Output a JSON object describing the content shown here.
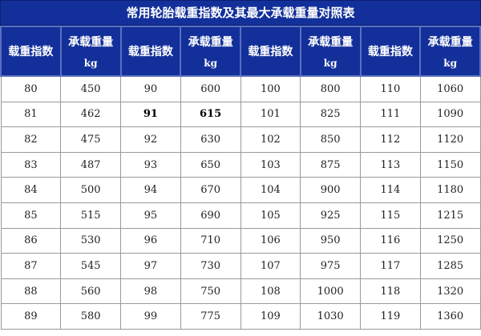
{
  "title": "常用轮胎载重指数及其最大承载重量对照表",
  "headers": [
    {
      "label": "载重指数",
      "unit": ""
    },
    {
      "label": "承载重量",
      "unit": "kg"
    },
    {
      "label": "载重指数",
      "unit": ""
    },
    {
      "label": "承载重量",
      "unit": "kg"
    },
    {
      "label": "载重指数",
      "unit": ""
    },
    {
      "label": "承载重量",
      "unit": "kg"
    },
    {
      "label": "载重指数",
      "unit": ""
    },
    {
      "label": "承载重量",
      "unit": "kg"
    }
  ],
  "rows": [
    [
      "80",
      "450",
      "90",
      "600",
      "100",
      "800",
      "110",
      "1060"
    ],
    [
      "81",
      "462",
      "91",
      "615",
      "101",
      "825",
      "111",
      "1090"
    ],
    [
      "82",
      "475",
      "92",
      "630",
      "102",
      "850",
      "112",
      "1120"
    ],
    [
      "83",
      "487",
      "93",
      "650",
      "103",
      "875",
      "113",
      "1150"
    ],
    [
      "84",
      "500",
      "94",
      "670",
      "104",
      "900",
      "114",
      "1180"
    ],
    [
      "85",
      "515",
      "95",
      "690",
      "105",
      "925",
      "115",
      "1215"
    ],
    [
      "86",
      "530",
      "96",
      "710",
      "106",
      "950",
      "116",
      "1250"
    ],
    [
      "87",
      "545",
      "97",
      "730",
      "107",
      "975",
      "117",
      "1285"
    ],
    [
      "88",
      "560",
      "98",
      "750",
      "108",
      "1000",
      "118",
      "1320"
    ],
    [
      "89",
      "580",
      "99",
      "775",
      "109",
      "1030",
      "119",
      "1360"
    ]
  ],
  "bold_cells": [
    [
      1,
      2
    ],
    [
      1,
      3
    ]
  ],
  "colors": {
    "header_bg": "#13309a",
    "header_text": "#ffffff",
    "grid": "#9a9a9a"
  }
}
